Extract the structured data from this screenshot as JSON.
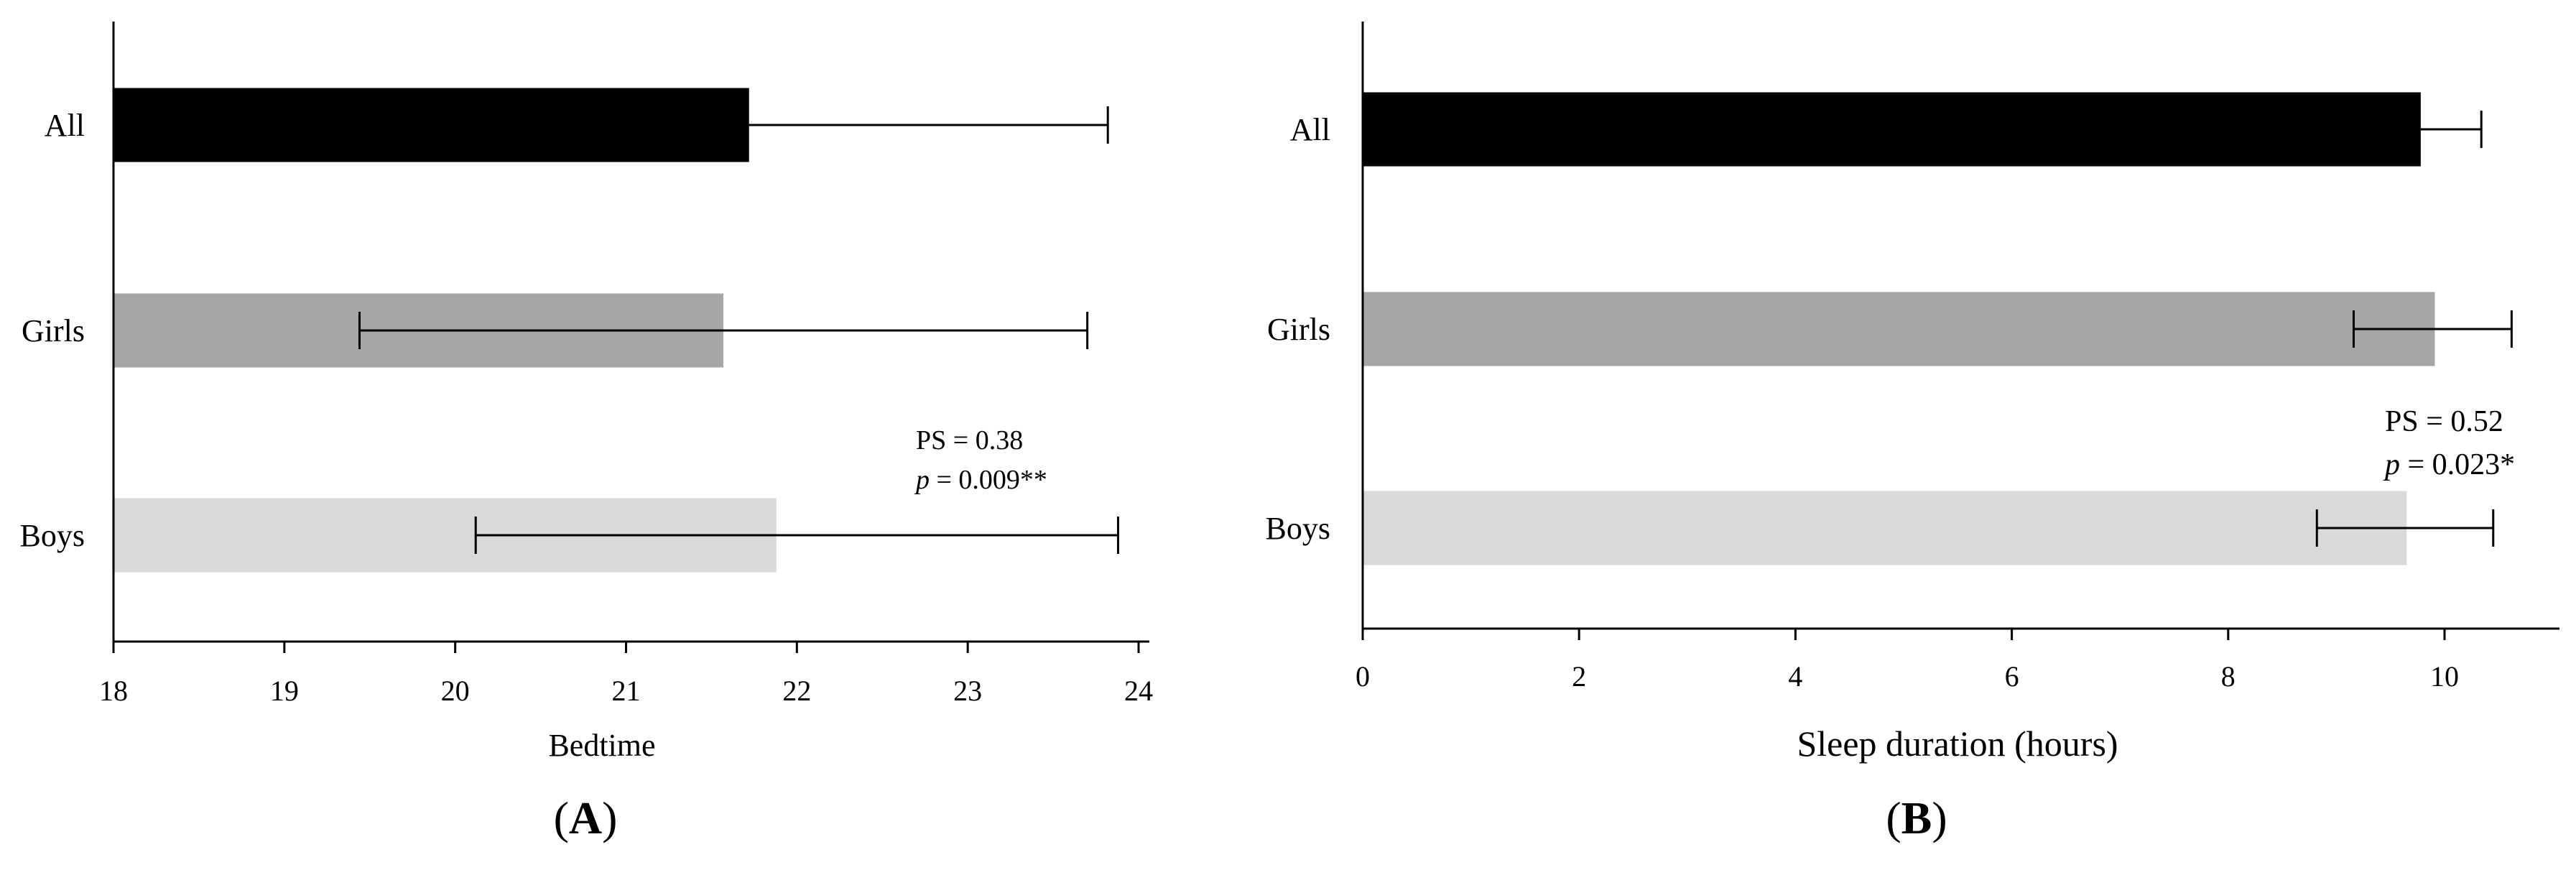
{
  "chart_data": [
    {
      "type": "bar",
      "orientation": "horizontal",
      "panel_label": "A",
      "categories": [
        "All",
        "Girls",
        "Boys"
      ],
      "values": [
        21.72,
        21.57,
        21.88
      ],
      "error_low": [
        21.72,
        19.44,
        20.12
      ],
      "error_high": [
        23.82,
        23.7,
        23.88
      ],
      "colors": [
        "#000000",
        "#a6a6a6",
        "#d9d9d9"
      ],
      "xlabel": "Bedtime",
      "ylabel": "",
      "xlim": [
        18,
        24
      ],
      "xticks": [
        "18",
        "19",
        "20",
        "21",
        "22",
        "23",
        "24"
      ],
      "annotation": {
        "ps": "PS = 0.38",
        "p_italic": "p",
        "p_rest": " = 0.009**"
      },
      "grid": false,
      "legend": "none"
    },
    {
      "type": "bar",
      "orientation": "horizontal",
      "panel_label": "B",
      "categories": [
        "All",
        "Girls",
        "Boys"
      ],
      "values": [
        9.78,
        9.91,
        9.65
      ],
      "error_low": [
        9.78,
        9.16,
        8.82
      ],
      "error_high": [
        10.34,
        10.62,
        10.45
      ],
      "colors": [
        "#000000",
        "#a6a6a6",
        "#d9d9d9"
      ],
      "xlabel": "Sleep duration (hours)",
      "ylabel": "",
      "xlim": [
        0,
        11
      ],
      "xticks": [
        "0",
        "2",
        "4",
        "6",
        "8",
        "10"
      ],
      "annotation": {
        "ps": "PS = 0.52",
        "p_italic": "p",
        "p_rest": " = 0.023*"
      },
      "grid": false,
      "legend": "none"
    }
  ]
}
